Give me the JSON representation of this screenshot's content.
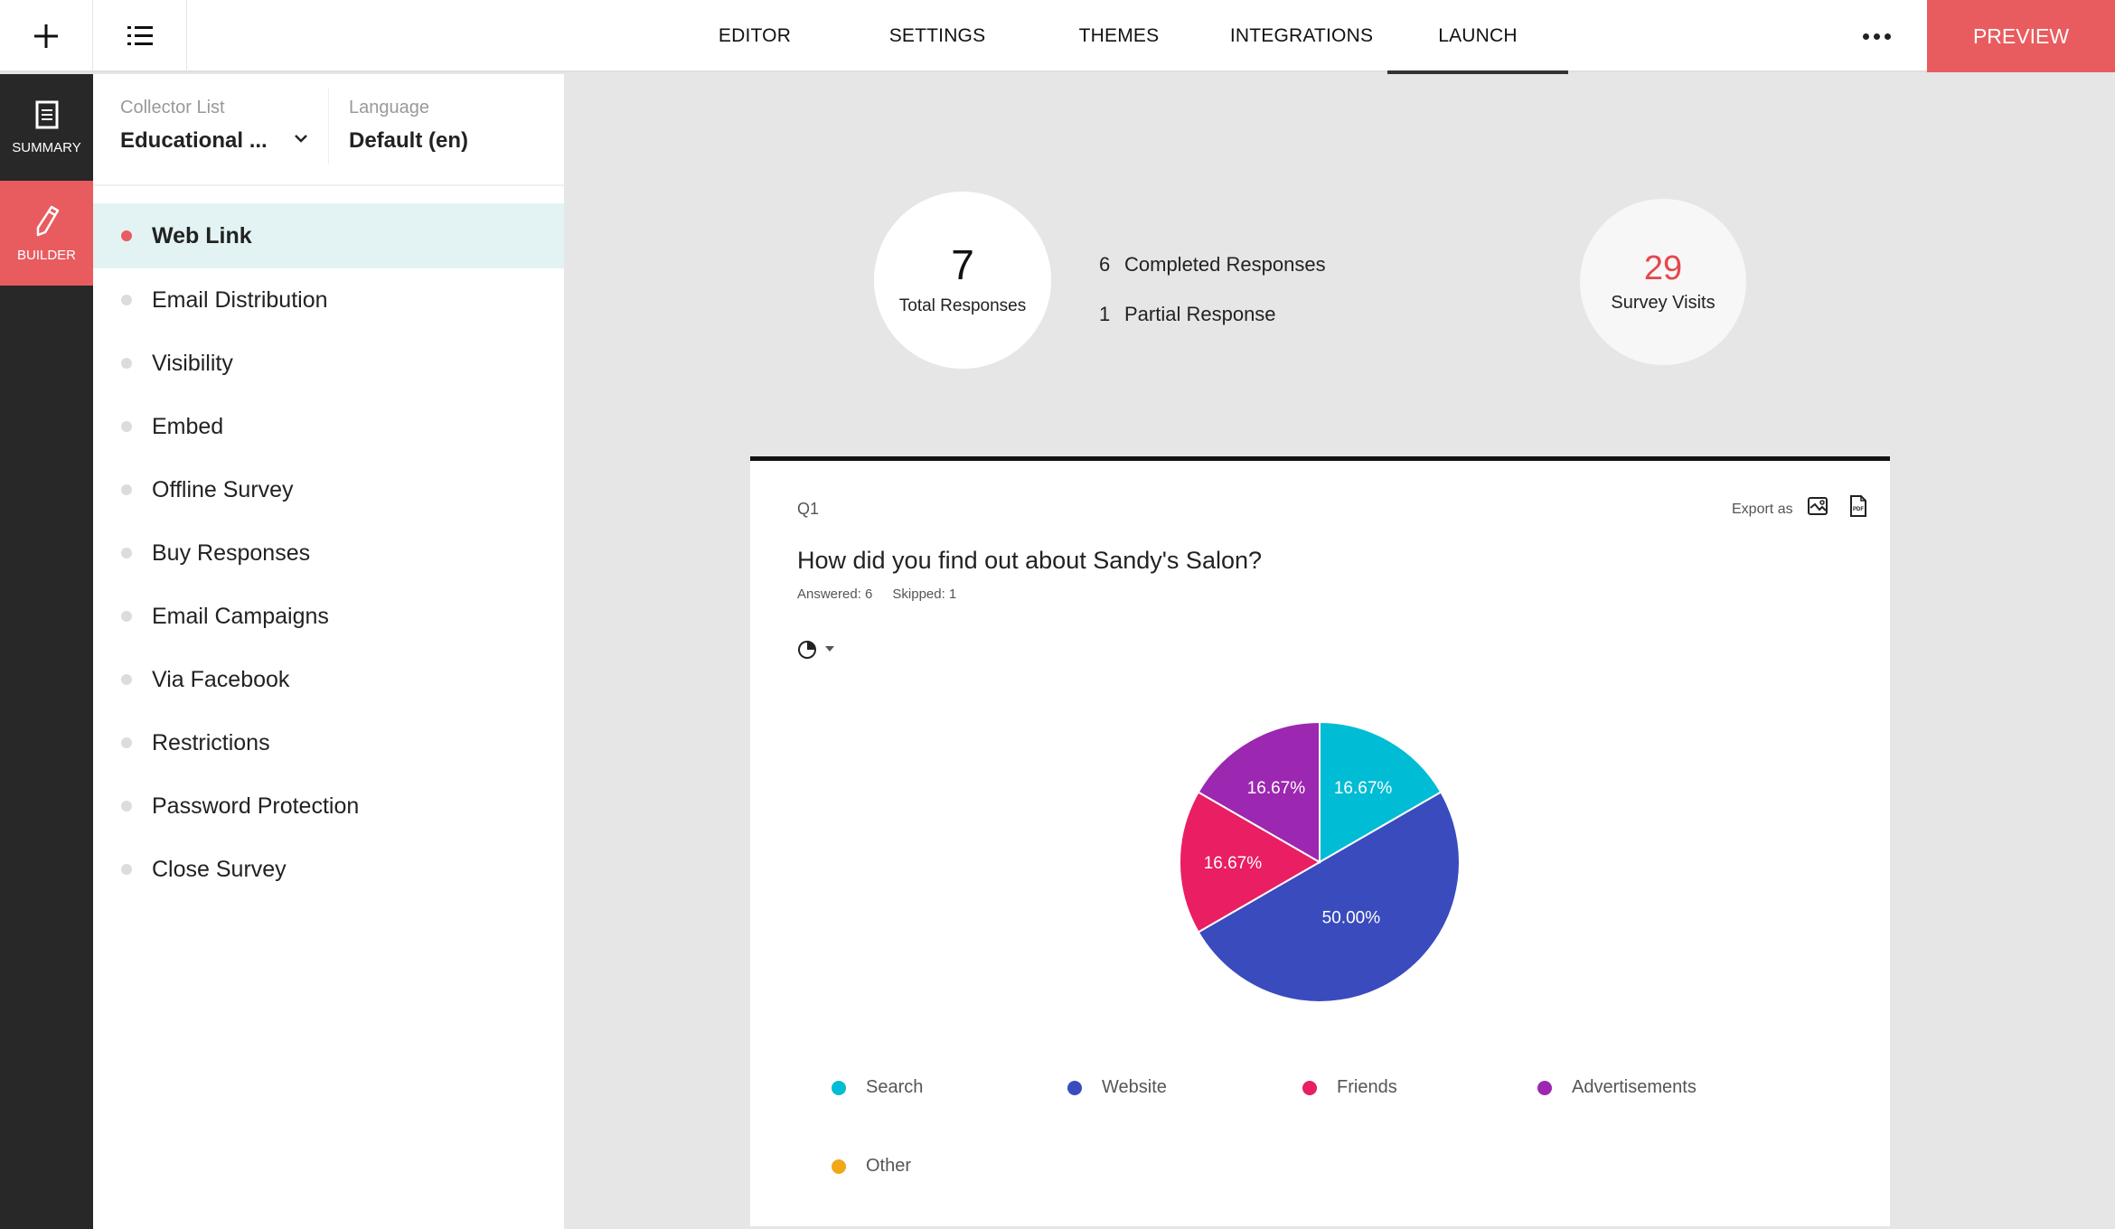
{
  "topbar": {
    "add_icon": "plus-icon",
    "list_icon": "list-icon",
    "tabs": [
      {
        "label": "EDITOR",
        "active": false
      },
      {
        "label": "SETTINGS",
        "active": false
      },
      {
        "label": "THEMES",
        "active": false
      },
      {
        "label": "INTEGRATIONS",
        "active": false
      },
      {
        "label": "LAUNCH",
        "active": true
      }
    ],
    "more_icon": "more-horizontal-icon",
    "preview_label": "PREVIEW"
  },
  "darkbar": {
    "items": [
      {
        "label": "SUMMARY",
        "icon": "document-icon",
        "active": false
      },
      {
        "label": "BUILDER",
        "icon": "pencil-icon",
        "active": true
      }
    ]
  },
  "leftpanel": {
    "collector_label": "Collector List",
    "collector_value": "Educational ...",
    "language_label": "Language",
    "language_value": "Default (en)",
    "items": [
      {
        "label": "Web Link",
        "active": true
      },
      {
        "label": "Email Distribution",
        "active": false
      },
      {
        "label": "Visibility",
        "active": false
      },
      {
        "label": "Embed",
        "active": false
      },
      {
        "label": "Offline Survey",
        "active": false
      },
      {
        "label": "Buy Responses",
        "active": false
      },
      {
        "label": "Email Campaigns",
        "active": false
      },
      {
        "label": "Via Facebook",
        "active": false
      },
      {
        "label": "Restrictions",
        "active": false
      },
      {
        "label": "Password Protection",
        "active": false
      },
      {
        "label": "Close Survey",
        "active": false
      }
    ]
  },
  "stats": {
    "total_responses": "7",
    "total_label": "Total Responses",
    "completed_count": "6",
    "completed_label": "Completed Responses",
    "partial_count": "1",
    "partial_label": "Partial Response",
    "visits": "29",
    "visits_label": "Survey Visits",
    "visits_color": "#e5484d"
  },
  "question": {
    "number": "Q1",
    "export_label": "Export as",
    "title": "How did you find out about Sandy's Salon?",
    "answered": "Answered: 6",
    "skipped": "Skipped: 1",
    "chart_type_icon": "pie-chart-icon"
  },
  "colors": {
    "accent": "#e85c5f",
    "dark": "#282828",
    "active_row": "#e3f3f3"
  },
  "chart_data": {
    "type": "pie",
    "title": "How did you find out about Sandy's Salon?",
    "categories": [
      "Search",
      "Website",
      "Friends",
      "Advertisements",
      "Other"
    ],
    "values": [
      16.67,
      50.0,
      16.67,
      16.67,
      0
    ],
    "labels": [
      "16.67%",
      "50.00%",
      "16.67%",
      "16.67%",
      ""
    ],
    "colors": [
      "#00bcd4",
      "#3a4bbd",
      "#e91e63",
      "#9c27b0",
      "#f0a818"
    ],
    "legend_position": "bottom"
  }
}
